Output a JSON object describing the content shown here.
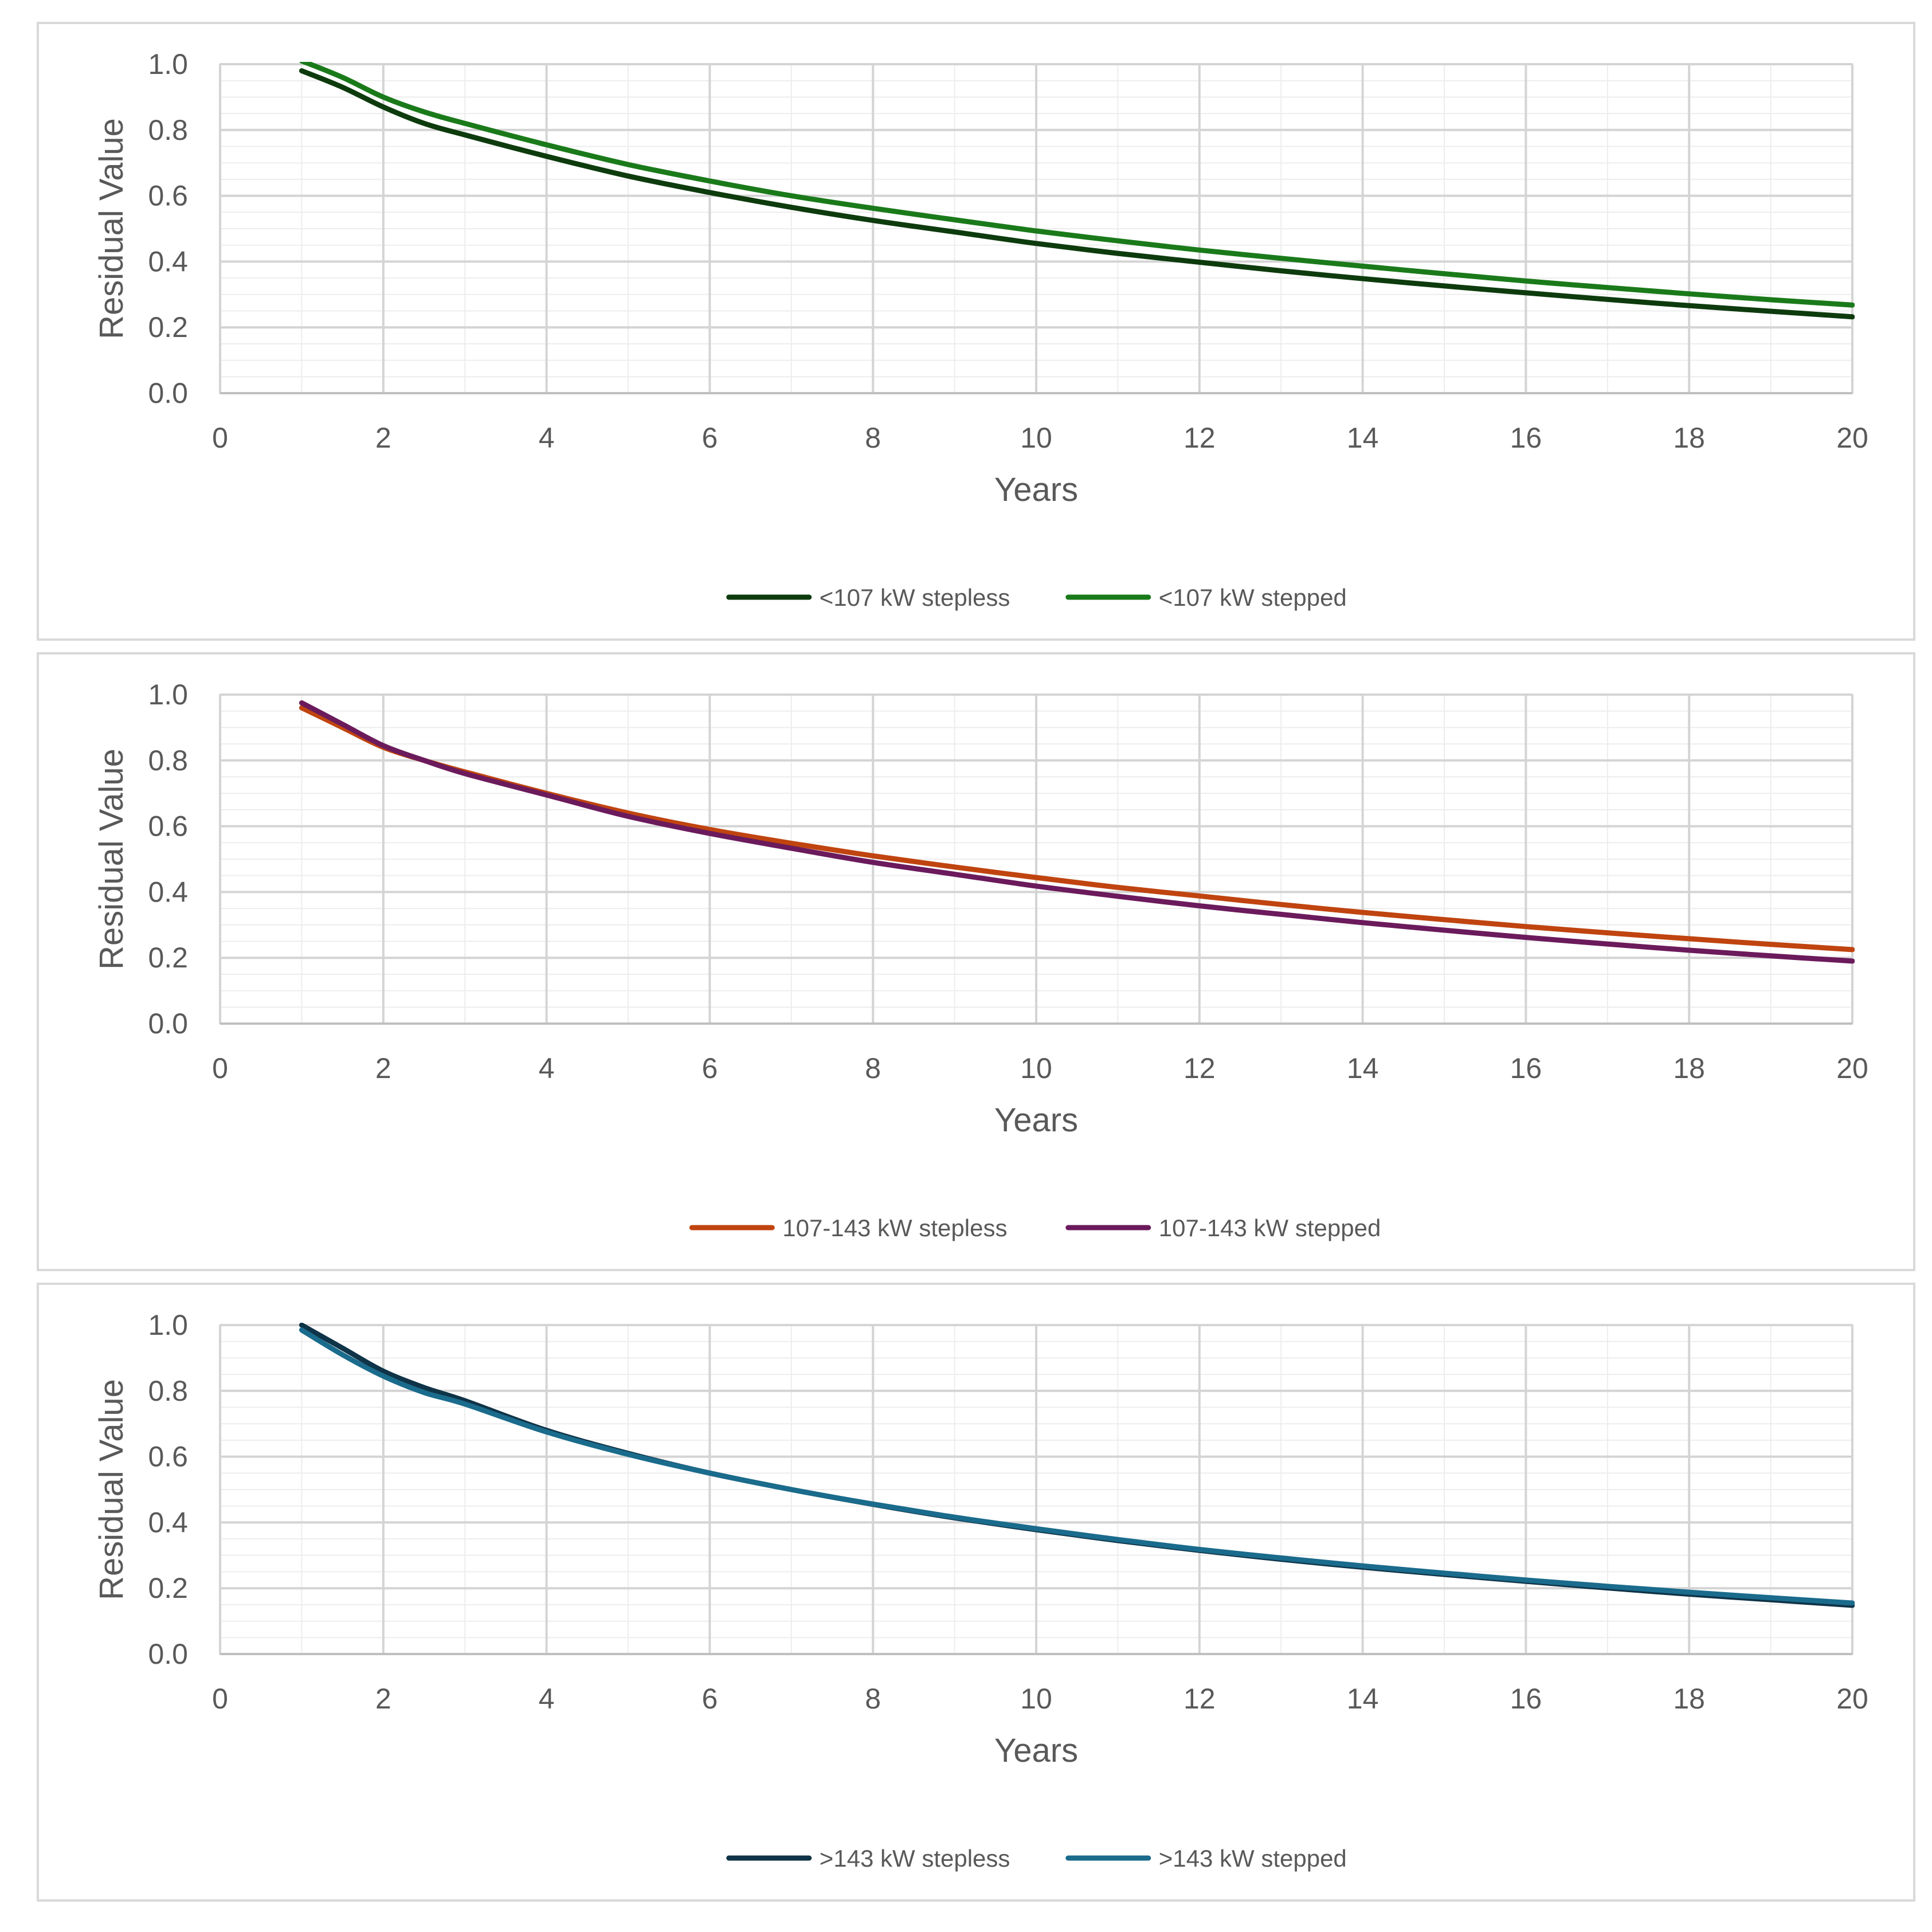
{
  "chart_data": [
    {
      "type": "line",
      "title": "",
      "xlabel": "Years",
      "ylabel": "Residual Value",
      "xlim": [
        0,
        20
      ],
      "ylim": [
        0,
        1.0
      ],
      "x_ticks": [
        "0",
        "2",
        "4",
        "6",
        "8",
        "10",
        "12",
        "14",
        "16",
        "18",
        "20"
      ],
      "y_ticks": [
        "0.0",
        "0.2",
        "0.4",
        "0.6",
        "0.8",
        "1.0"
      ],
      "grid": true,
      "legend_position": "bottom-center",
      "x": [
        1,
        1.5,
        2,
        2.5,
        3,
        4,
        5,
        6,
        7,
        8,
        9,
        10,
        11,
        12,
        13,
        14,
        15,
        16,
        17,
        18,
        19,
        20
      ],
      "series": [
        {
          "name": "<107 kW stepless",
          "color": "#0d3b0d",
          "values": [
            0.98,
            0.93,
            0.87,
            0.82,
            0.785,
            0.72,
            0.66,
            0.61,
            0.565,
            0.525,
            0.49,
            0.455,
            0.425,
            0.398,
            0.372,
            0.348,
            0.326,
            0.305,
            0.285,
            0.266,
            0.249,
            0.232
          ]
        },
        {
          "name": "<107 kW stepped",
          "color": "#1a7a1a",
          "values": [
            1.01,
            0.96,
            0.9,
            0.855,
            0.82,
            0.755,
            0.695,
            0.645,
            0.6,
            0.562,
            0.527,
            0.493,
            0.463,
            0.435,
            0.41,
            0.386,
            0.363,
            0.341,
            0.321,
            0.302,
            0.284,
            0.268
          ]
        }
      ]
    },
    {
      "type": "line",
      "title": "",
      "xlabel": "Years",
      "ylabel": "Residual Value",
      "xlim": [
        0,
        20
      ],
      "ylim": [
        0,
        1.0
      ],
      "x_ticks": [
        "0",
        "2",
        "4",
        "6",
        "8",
        "10",
        "12",
        "14",
        "16",
        "18",
        "20"
      ],
      "y_ticks": [
        "0.0",
        "0.2",
        "0.4",
        "0.6",
        "0.8",
        "1.0"
      ],
      "grid": true,
      "legend_position": "bottom-center",
      "x": [
        1,
        1.5,
        2,
        2.5,
        3,
        4,
        5,
        6,
        7,
        8,
        9,
        10,
        11,
        12,
        13,
        14,
        15,
        16,
        17,
        18,
        19,
        20
      ],
      "series": [
        {
          "name": "107-143 kW stepless",
          "color": "#c0440f",
          "values": [
            0.96,
            0.9,
            0.84,
            0.8,
            0.765,
            0.7,
            0.64,
            0.59,
            0.548,
            0.51,
            0.476,
            0.444,
            0.414,
            0.388,
            0.362,
            0.338,
            0.316,
            0.295,
            0.276,
            0.258,
            0.241,
            0.225
          ]
        },
        {
          "name": "107-143 kW stepped",
          "color": "#6b1a5c",
          "values": [
            0.975,
            0.91,
            0.845,
            0.8,
            0.76,
            0.695,
            0.63,
            0.578,
            0.533,
            0.49,
            0.454,
            0.418,
            0.387,
            0.358,
            0.332,
            0.307,
            0.284,
            0.262,
            0.242,
            0.223,
            0.206,
            0.19
          ]
        }
      ]
    },
    {
      "type": "line",
      "title": "",
      "xlabel": "Years",
      "ylabel": "Residual Value",
      "xlim": [
        0,
        20
      ],
      "ylim": [
        0,
        1.0
      ],
      "x_ticks": [
        "0",
        "2",
        "4",
        "6",
        "8",
        "10",
        "12",
        "14",
        "16",
        "18",
        "20"
      ],
      "y_ticks": [
        "0.0",
        "0.2",
        "0.4",
        "0.6",
        "0.8",
        "1.0"
      ],
      "grid": true,
      "legend_position": "bottom-center",
      "x": [
        1,
        1.5,
        2,
        2.5,
        3,
        4,
        5,
        6,
        7,
        8,
        9,
        10,
        11,
        12,
        13,
        14,
        15,
        16,
        17,
        18,
        19,
        20
      ],
      "series": [
        {
          "name": ">143 kW stepless",
          "color": "#0f3347",
          "values": [
            1.0,
            0.93,
            0.86,
            0.81,
            0.77,
            0.68,
            0.61,
            0.55,
            0.5,
            0.455,
            0.414,
            0.378,
            0.345,
            0.315,
            0.288,
            0.264,
            0.242,
            0.221,
            0.201,
            0.182,
            0.165,
            0.148
          ]
        },
        {
          "name": ">143 kW stepped",
          "color": "#1a6b8c",
          "values": [
            0.985,
            0.91,
            0.845,
            0.795,
            0.76,
            0.675,
            0.607,
            0.55,
            0.5,
            0.456,
            0.416,
            0.381,
            0.348,
            0.318,
            0.292,
            0.268,
            0.246,
            0.225,
            0.206,
            0.188,
            0.171,
            0.155
          ]
        }
      ]
    }
  ]
}
